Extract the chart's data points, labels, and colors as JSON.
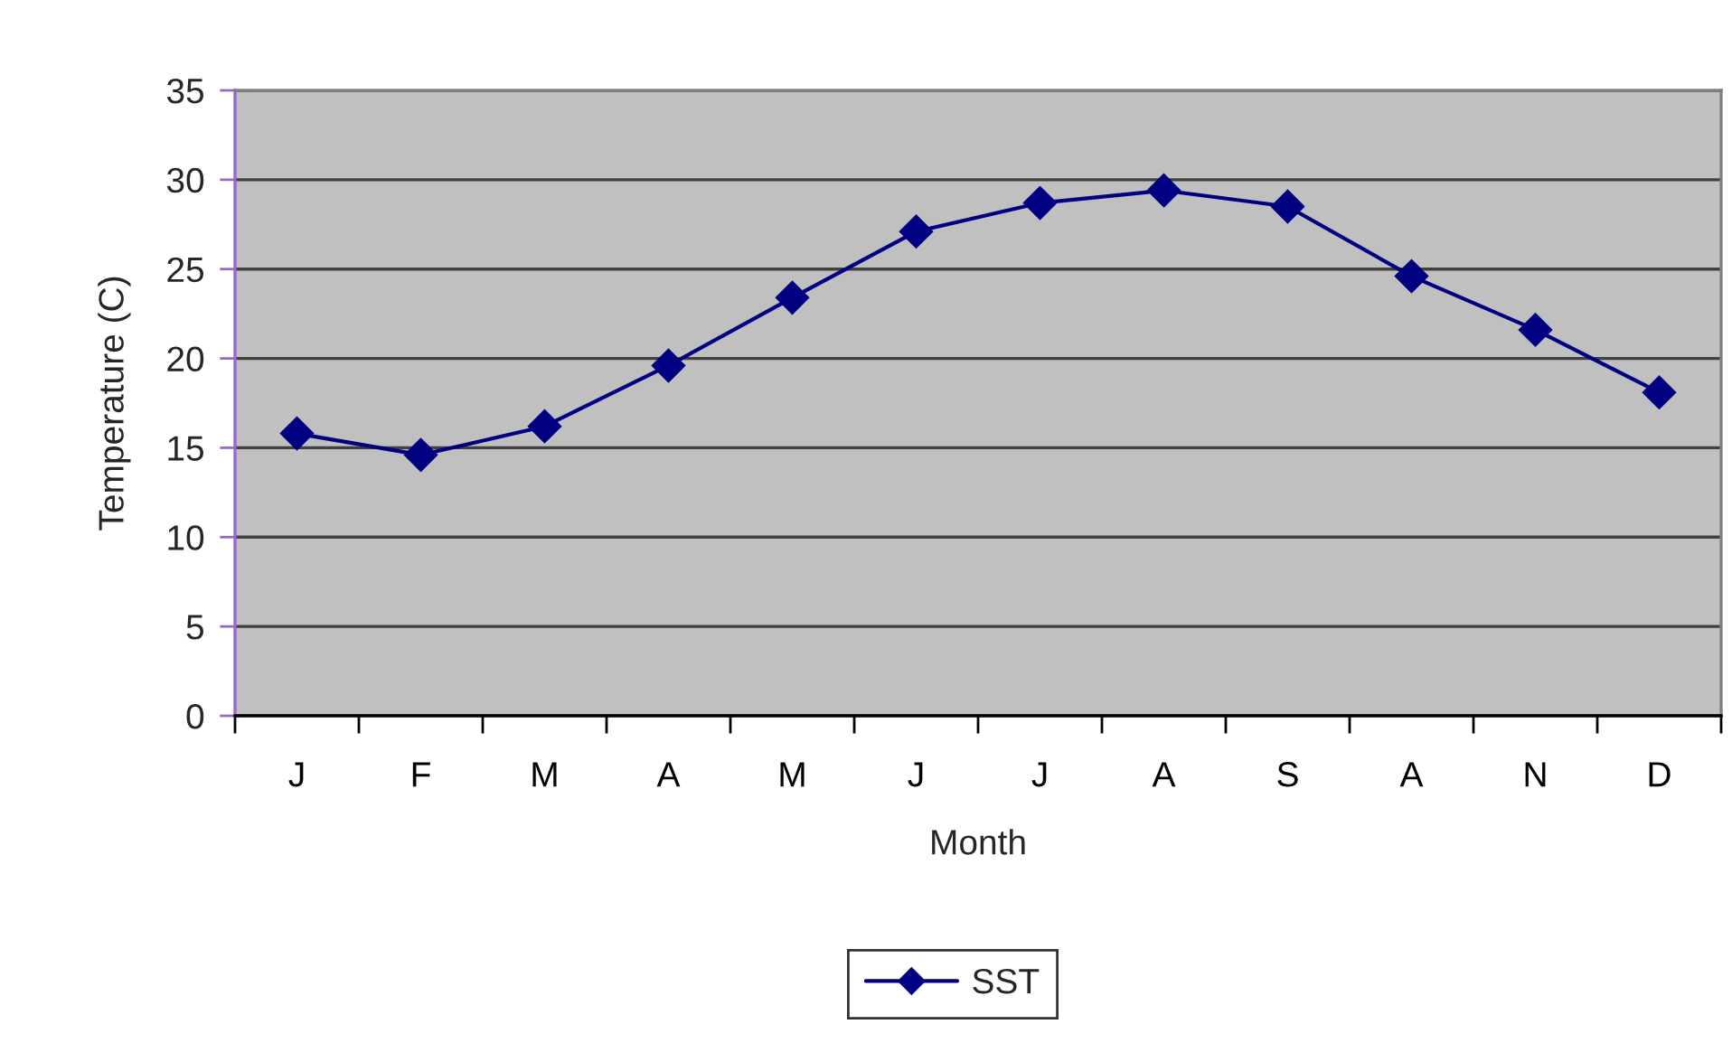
{
  "chart_data": {
    "type": "line",
    "xlabel": "Month",
    "ylabel": "Temperature (C)",
    "categories": [
      "J",
      "F",
      "M",
      "A",
      "M",
      "J",
      "J",
      "A",
      "S",
      "A",
      "N",
      "D"
    ],
    "series": [
      {
        "name": "SST",
        "color": "#000080",
        "values": [
          15.8,
          14.6,
          16.2,
          19.6,
          23.4,
          27.1,
          28.7,
          29.4,
          28.5,
          24.6,
          21.6,
          18.1
        ]
      }
    ],
    "ylim": [
      0,
      35
    ],
    "yticks": [
      0,
      5,
      10,
      15,
      20,
      25,
      30,
      35
    ],
    "grid": "y",
    "legend": "bottom",
    "marker": "diamond",
    "line_style": "solid"
  }
}
